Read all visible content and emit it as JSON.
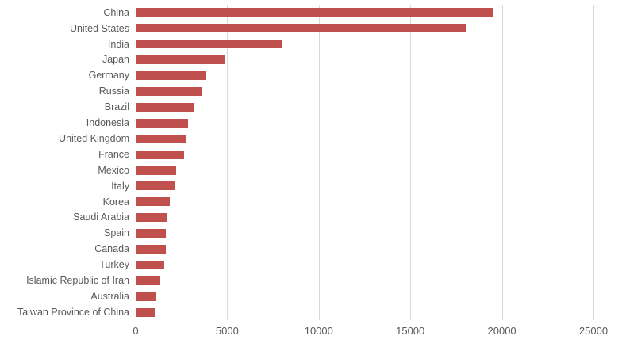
{
  "chart_data": {
    "type": "bar",
    "orientation": "horizontal",
    "title": "",
    "categories": [
      "China",
      "United States",
      "India",
      "Japan",
      "Germany",
      "Russia",
      "Brazil",
      "Indonesia",
      "United Kingdom",
      "France",
      "Mexico",
      "Italy",
      "Korea",
      "Saudi Arabia",
      "Spain",
      "Canada",
      "Turkey",
      "Islamic Republic of Iran",
      "Australia",
      "Taiwan Province of China"
    ],
    "values": [
      19510,
      18036,
      8027,
      4843,
      3857,
      3580,
      3216,
      2839,
      2722,
      2651,
      2227,
      2174,
      1849,
      1683,
      1636,
      1632,
      1576,
      1357,
      1137,
      1099
    ],
    "x_ticks": [
      "0",
      "5000",
      "10000",
      "15000",
      "20000",
      "25000"
    ],
    "x_tick_values": [
      0,
      5000,
      10000,
      15000,
      20000,
      25000
    ],
    "xlim": [
      0,
      25000
    ],
    "grid": true,
    "legend_position": "none",
    "colors": {
      "bar": "#C0504D",
      "gridline": "#D9D9D9",
      "axis_line": "#C6C6C6",
      "tick_text": "#595959",
      "category_text": "#595959",
      "background": "#FFFFFF"
    }
  }
}
